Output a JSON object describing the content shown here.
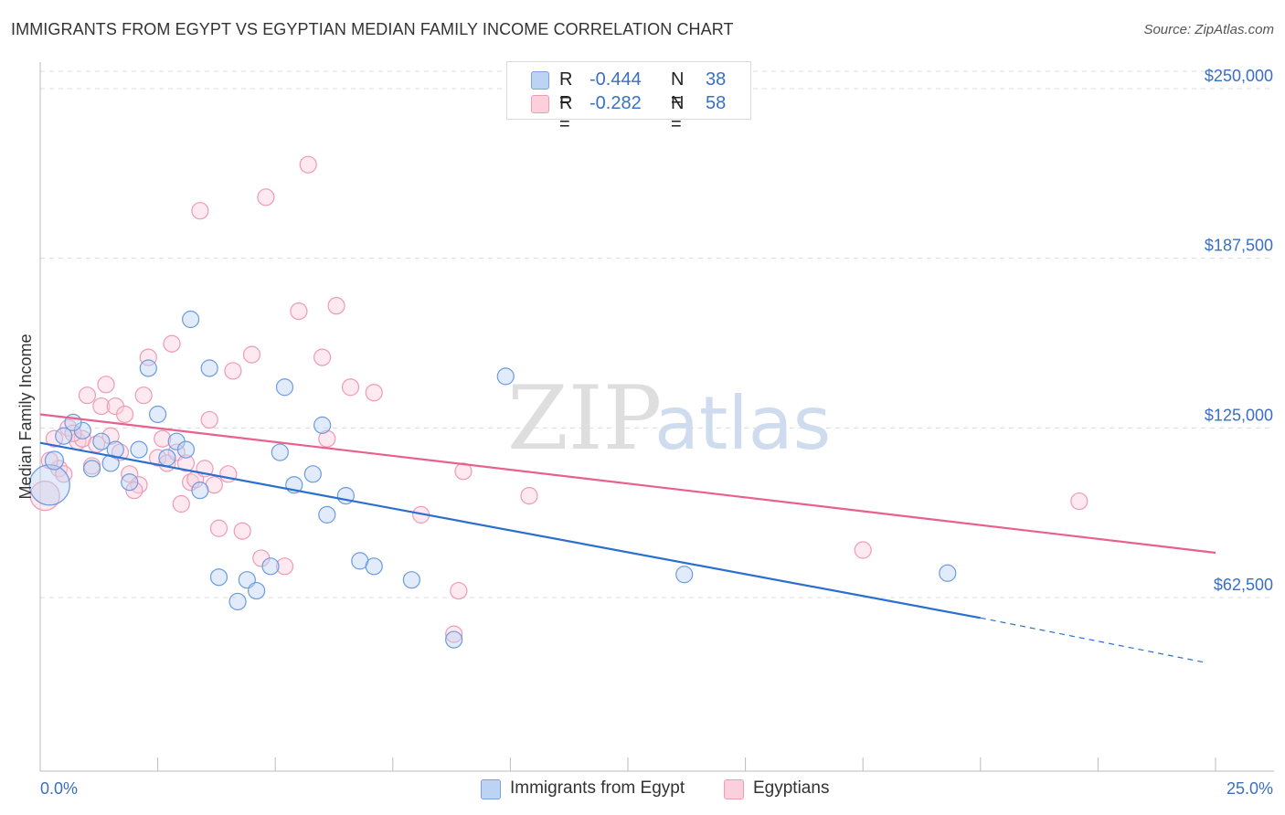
{
  "header": {
    "title": "IMMIGRANTS FROM EGYPT VS EGYPTIAN MEDIAN FAMILY INCOME CORRELATION CHART",
    "source": "Source: ZipAtlas.com"
  },
  "watermark": {
    "zip": "ZIP",
    "atlas": "atlas"
  },
  "legend": {
    "rows": [
      {
        "r_label": "R =",
        "r_value": "-0.444",
        "n_label": "N =",
        "n_value": "38"
      },
      {
        "r_label": "R =",
        "r_value": "-0.282",
        "n_label": "N =",
        "n_value": "58"
      }
    ]
  },
  "chart_data": {
    "type": "scatter",
    "title": "IMMIGRANTS FROM EGYPT VS EGYPTIAN MEDIAN FAMILY INCOME CORRELATION CHART",
    "xlabel": "",
    "ylabel": "Median Family Income",
    "xlim": [
      0,
      25
    ],
    "ylim": [
      25000,
      260000
    ],
    "x_tick_labels": [
      "0.0%",
      "25.0%"
    ],
    "y_ticks": [
      {
        "value": 62500,
        "label": "$62,500"
      },
      {
        "value": 125000,
        "label": "$125,000"
      },
      {
        "value": 187500,
        "label": "$187,500"
      },
      {
        "value": 250000,
        "label": "$250,000"
      }
    ],
    "grid": "horizontal dashed",
    "legend_position": "top-center",
    "colors": {
      "egypt": "#6b9be0",
      "egyptians": "#f090ac",
      "egypt_line": "#2a6fd0",
      "egyptians_line": "#e8608c",
      "axis_label": "#3a6fc4"
    },
    "series": [
      {
        "name": "Immigrants from Egypt",
        "points": [
          {
            "x": 0.2,
            "y": 104000,
            "s": 22
          },
          {
            "x": 0.3,
            "y": 113000,
            "s": 10
          },
          {
            "x": 0.5,
            "y": 122000
          },
          {
            "x": 0.9,
            "y": 124000
          },
          {
            "x": 1.1,
            "y": 110000
          },
          {
            "x": 1.3,
            "y": 120000
          },
          {
            "x": 1.5,
            "y": 112000
          },
          {
            "x": 1.6,
            "y": 117000
          },
          {
            "x": 1.9,
            "y": 105000
          },
          {
            "x": 2.1,
            "y": 117000
          },
          {
            "x": 2.3,
            "y": 147000
          },
          {
            "x": 2.5,
            "y": 130000
          },
          {
            "x": 2.7,
            "y": 114000
          },
          {
            "x": 2.9,
            "y": 120000
          },
          {
            "x": 3.1,
            "y": 117000
          },
          {
            "x": 3.2,
            "y": 165000
          },
          {
            "x": 3.4,
            "y": 102000
          },
          {
            "x": 3.6,
            "y": 147000
          },
          {
            "x": 3.8,
            "y": 70000
          },
          {
            "x": 4.2,
            "y": 61000
          },
          {
            "x": 4.4,
            "y": 69000
          },
          {
            "x": 4.6,
            "y": 65000
          },
          {
            "x": 4.9,
            "y": 74000
          },
          {
            "x": 5.1,
            "y": 116000
          },
          {
            "x": 5.2,
            "y": 140000
          },
          {
            "x": 5.4,
            "y": 104000
          },
          {
            "x": 5.8,
            "y": 108000
          },
          {
            "x": 6.0,
            "y": 126000
          },
          {
            "x": 6.1,
            "y": 93000
          },
          {
            "x": 6.5,
            "y": 100000
          },
          {
            "x": 6.8,
            "y": 76000
          },
          {
            "x": 7.1,
            "y": 74000
          },
          {
            "x": 7.9,
            "y": 69000
          },
          {
            "x": 8.8,
            "y": 47000
          },
          {
            "x": 9.9,
            "y": 144000
          },
          {
            "x": 13.7,
            "y": 71000
          },
          {
            "x": 19.3,
            "y": 71500
          },
          {
            "x": 0.7,
            "y": 127000
          }
        ],
        "trend": {
          "x": [
            0,
            20
          ],
          "y": [
            119500,
            55000
          ],
          "dashed_to": {
            "x": 24.8,
            "y": 38500
          }
        }
      },
      {
        "name": "Egyptians",
        "points": [
          {
            "x": 0.1,
            "y": 100000,
            "s": 16
          },
          {
            "x": 0.3,
            "y": 121000
          },
          {
            "x": 0.4,
            "y": 110000
          },
          {
            "x": 0.5,
            "y": 108000
          },
          {
            "x": 0.6,
            "y": 125000
          },
          {
            "x": 0.8,
            "y": 120000
          },
          {
            "x": 0.9,
            "y": 121000
          },
          {
            "x": 1.0,
            "y": 137000
          },
          {
            "x": 1.1,
            "y": 111000
          },
          {
            "x": 1.3,
            "y": 133000
          },
          {
            "x": 1.4,
            "y": 141000
          },
          {
            "x": 1.5,
            "y": 122000
          },
          {
            "x": 1.6,
            "y": 133000
          },
          {
            "x": 1.7,
            "y": 116000
          },
          {
            "x": 1.8,
            "y": 130000
          },
          {
            "x": 1.9,
            "y": 108000
          },
          {
            "x": 2.1,
            "y": 104000
          },
          {
            "x": 2.2,
            "y": 137000
          },
          {
            "x": 2.3,
            "y": 151000
          },
          {
            "x": 2.5,
            "y": 114000
          },
          {
            "x": 2.6,
            "y": 121000
          },
          {
            "x": 2.7,
            "y": 112000
          },
          {
            "x": 2.8,
            "y": 156000
          },
          {
            "x": 2.9,
            "y": 116000
          },
          {
            "x": 3.0,
            "y": 97000
          },
          {
            "x": 3.1,
            "y": 112000
          },
          {
            "x": 3.2,
            "y": 105000
          },
          {
            "x": 3.3,
            "y": 106000
          },
          {
            "x": 3.4,
            "y": 205000
          },
          {
            "x": 3.6,
            "y": 128000
          },
          {
            "x": 3.7,
            "y": 104000
          },
          {
            "x": 3.8,
            "y": 88000
          },
          {
            "x": 4.0,
            "y": 108000
          },
          {
            "x": 4.1,
            "y": 146000
          },
          {
            "x": 4.3,
            "y": 87000
          },
          {
            "x": 4.5,
            "y": 152000
          },
          {
            "x": 4.7,
            "y": 77000
          },
          {
            "x": 4.8,
            "y": 210000
          },
          {
            "x": 5.2,
            "y": 74000
          },
          {
            "x": 5.5,
            "y": 168000
          },
          {
            "x": 5.7,
            "y": 222000
          },
          {
            "x": 6.0,
            "y": 151000
          },
          {
            "x": 6.1,
            "y": 121000
          },
          {
            "x": 6.3,
            "y": 170000
          },
          {
            "x": 6.6,
            "y": 140000
          },
          {
            "x": 7.1,
            "y": 138000
          },
          {
            "x": 8.1,
            "y": 93000
          },
          {
            "x": 8.8,
            "y": 49000
          },
          {
            "x": 8.9,
            "y": 65000
          },
          {
            "x": 9.0,
            "y": 109000
          },
          {
            "x": 10.4,
            "y": 100000
          },
          {
            "x": 17.5,
            "y": 80000
          },
          {
            "x": 22.1,
            "y": 98000
          },
          {
            "x": 0.2,
            "y": 113000
          },
          {
            "x": 0.7,
            "y": 123000
          },
          {
            "x": 2.0,
            "y": 102000
          },
          {
            "x": 3.5,
            "y": 110000
          },
          {
            "x": 1.2,
            "y": 119000
          }
        ],
        "trend": {
          "x": [
            0,
            25
          ],
          "y": [
            130000,
            79000
          ]
        }
      }
    ]
  },
  "bottom_legend": [
    {
      "label": "Immigrants from Egypt"
    },
    {
      "label": "Egyptians"
    }
  ]
}
